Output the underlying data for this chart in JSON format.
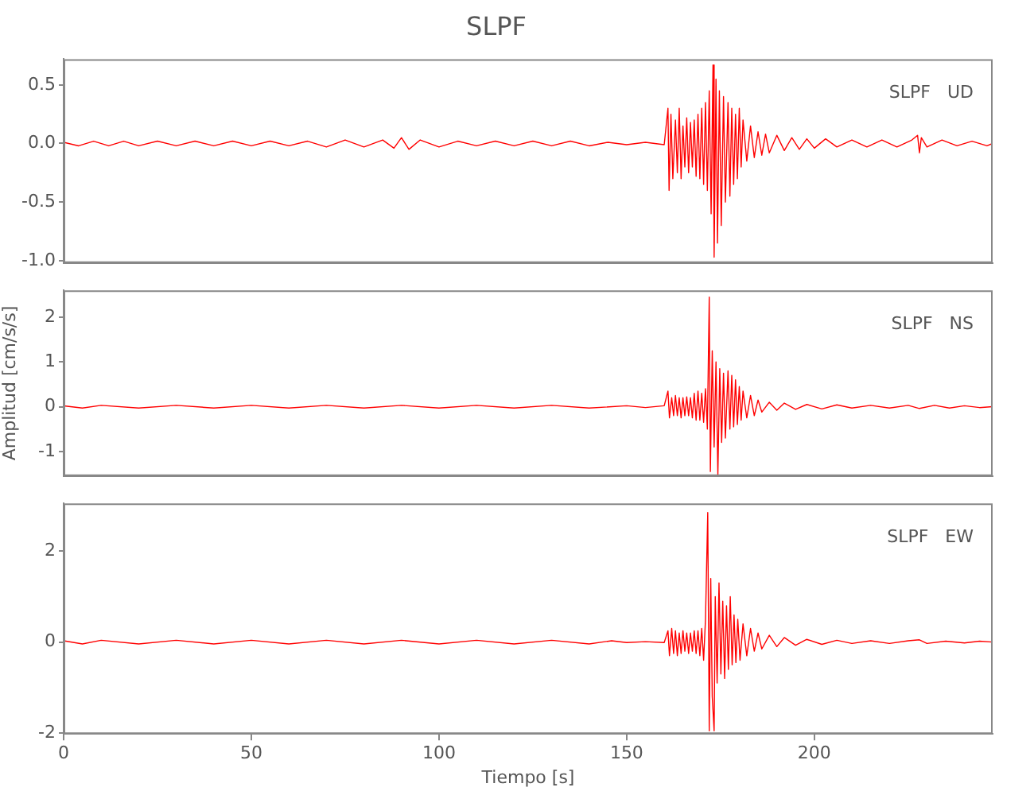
{
  "chart_data": [
    {
      "type": "line",
      "title": "SLPF",
      "annotations": [
        "SLPF   UD"
      ],
      "xlim": [
        0,
        247.5
      ],
      "xticks": [
        0,
        50,
        100,
        150,
        200
      ],
      "ylim": [
        -1.02,
        0.72
      ],
      "yticks": [
        0.5,
        {
          "value": 0,
          "label": "0.0"
        },
        -0.5,
        {
          "value": -1,
          "label": "-1.0"
        }
      ],
      "tick_labels": "y",
      "grid": false,
      "legend": false,
      "series": [
        {
          "color": "#ff0000",
          "x": [
            0,
            4,
            8,
            12,
            16,
            20,
            25,
            30,
            35,
            40,
            45,
            50,
            55,
            60,
            65,
            70,
            75,
            80,
            85,
            88,
            90,
            92,
            95,
            100,
            105,
            110,
            115,
            120,
            125,
            130,
            135,
            140,
            145,
            150,
            155,
            160,
            161,
            161.3,
            161.8,
            162.3,
            163,
            163.5,
            164,
            164.5,
            165,
            165.5,
            166,
            166.5,
            167,
            167.5,
            168,
            168.5,
            169,
            169.5,
            170,
            170.5,
            171,
            171.5,
            172,
            172.5,
            173,
            173.3,
            173.8,
            174.2,
            174.7,
            175.2,
            175.8,
            176.3,
            177,
            177.5,
            178,
            178.5,
            179,
            179.5,
            180,
            180.5,
            181,
            182,
            183,
            184,
            185,
            186,
            187,
            188,
            190,
            192,
            194,
            196,
            198,
            200,
            203,
            206,
            210,
            214,
            218,
            222,
            226,
            227.5,
            228,
            228.5,
            230,
            234,
            238,
            242,
            246,
            247.5
          ],
          "values": [
            0.01,
            -0.02,
            0.02,
            -0.02,
            0.02,
            -0.02,
            0.02,
            -0.02,
            0.02,
            -0.02,
            0.02,
            -0.02,
            0.02,
            -0.02,
            0.02,
            -0.03,
            0.03,
            -0.03,
            0.03,
            -0.04,
            0.05,
            -0.05,
            0.03,
            -0.03,
            0.02,
            -0.02,
            0.02,
            -0.02,
            0.02,
            -0.02,
            0.02,
            -0.02,
            0.01,
            -0.01,
            0.01,
            -0.01,
            0.3,
            -0.4,
            0.25,
            -0.3,
            0.2,
            -0.25,
            0.3,
            -0.3,
            0.15,
            -0.2,
            0.22,
            -0.25,
            0.18,
            -0.2,
            0.2,
            -0.28,
            0.25,
            -0.3,
            0.3,
            -0.35,
            0.35,
            -0.4,
            0.45,
            -0.6,
            0.67,
            -0.97,
            0.55,
            -0.85,
            0.45,
            -0.7,
            0.4,
            -0.5,
            0.35,
            -0.45,
            0.3,
            -0.35,
            0.25,
            -0.3,
            0.3,
            -0.2,
            0.2,
            -0.15,
            0.15,
            -0.12,
            0.1,
            -0.1,
            0.08,
            -0.08,
            0.07,
            -0.06,
            0.05,
            -0.05,
            0.04,
            -0.04,
            0.04,
            -0.03,
            0.03,
            -0.03,
            0.03,
            -0.03,
            0.03,
            0.07,
            -0.08,
            0.05,
            -0.03,
            0.03,
            -0.02,
            0.02,
            -0.02,
            0
          ]
        }
      ]
    },
    {
      "type": "line",
      "ylabel": "Amplitud [cm/s/s]",
      "annotations": [
        "SLPF   NS"
      ],
      "xlim": [
        0,
        247.5
      ],
      "xticks": [
        0,
        50,
        100,
        150,
        200
      ],
      "ylim": [
        -1.55,
        2.6
      ],
      "yticks": [
        2,
        1,
        0,
        -1
      ],
      "tick_labels": "y",
      "grid": false,
      "legend": false,
      "series": [
        {
          "color": "#ff0000",
          "x": [
            0,
            5,
            10,
            20,
            30,
            40,
            50,
            60,
            70,
            80,
            90,
            100,
            110,
            120,
            130,
            140,
            150,
            155,
            160,
            161,
            161.4,
            162,
            162.5,
            163,
            163.5,
            164,
            164.5,
            165,
            165.5,
            166,
            166.5,
            167,
            167.5,
            168,
            168.5,
            169,
            169.5,
            170,
            170.5,
            171,
            171.5,
            172,
            172.3,
            172.8,
            173.3,
            173.8,
            174.3,
            174.8,
            175.3,
            175.8,
            176.3,
            177,
            177.5,
            178,
            178.5,
            179,
            179.5,
            180,
            180.5,
            181,
            182,
            183,
            184,
            185,
            186,
            188,
            190,
            192,
            195,
            198,
            202,
            206,
            210,
            215,
            220,
            225,
            228,
            232,
            236,
            240,
            244,
            247.5
          ],
          "values": [
            0.02,
            -0.03,
            0.03,
            -0.03,
            0.03,
            -0.03,
            0.03,
            -0.03,
            0.03,
            -0.03,
            0.03,
            -0.03,
            0.03,
            -0.03,
            0.03,
            -0.03,
            0.02,
            -0.02,
            0.02,
            0.35,
            -0.25,
            0.2,
            -0.2,
            0.25,
            -0.2,
            0.2,
            -0.25,
            0.2,
            -0.2,
            0.22,
            -0.2,
            0.2,
            -0.25,
            0.3,
            -0.3,
            0.35,
            -0.3,
            0.3,
            -0.35,
            0.4,
            -0.5,
            2.45,
            -1.45,
            1.25,
            -0.9,
            1,
            -1.52,
            0.85,
            -0.8,
            0.75,
            -0.7,
            0.8,
            -0.5,
            0.7,
            -0.45,
            0.6,
            -0.4,
            0.45,
            -0.3,
            0.35,
            -0.25,
            0.25,
            -0.2,
            0.15,
            -0.12,
            0.1,
            -0.08,
            0.08,
            -0.06,
            0.05,
            -0.05,
            0.04,
            -0.03,
            0.03,
            -0.03,
            0.03,
            -0.04,
            0.03,
            -0.03,
            0.02,
            -0.02,
            0
          ]
        }
      ]
    },
    {
      "type": "line",
      "xlabel": "Tiempo [s]",
      "annotations": [
        "SLPF   EW"
      ],
      "xlim": [
        0,
        247.5
      ],
      "xticks": [
        0,
        50,
        100,
        150,
        200
      ],
      "ylim": [
        -2.02,
        3.05
      ],
      "yticks": [
        2,
        0,
        -2
      ],
      "grid": false,
      "legend": false,
      "series": [
        {
          "color": "#ff0000",
          "x": [
            0,
            5,
            10,
            20,
            30,
            40,
            50,
            60,
            70,
            80,
            90,
            100,
            110,
            120,
            130,
            140,
            146,
            150,
            155,
            160,
            161,
            161.4,
            162,
            162.5,
            163,
            163.5,
            164,
            164.5,
            165,
            165.5,
            166,
            166.5,
            167,
            167.5,
            168,
            168.5,
            169,
            169.5,
            170,
            170.5,
            171,
            171.6,
            172,
            172.4,
            172.8,
            173.3,
            173.6,
            174.1,
            174.6,
            175.1,
            175.6,
            176.1,
            176.6,
            177.1,
            177.6,
            178.1,
            178.6,
            179.1,
            179.6,
            180.2,
            181,
            182,
            183,
            184,
            185,
            186,
            188,
            190,
            192,
            195,
            198,
            202,
            206,
            210,
            215,
            220,
            225,
            228,
            230,
            235,
            240,
            244,
            247.5
          ],
          "values": [
            0.03,
            -0.04,
            0.04,
            -0.04,
            0.04,
            -0.04,
            0.04,
            -0.04,
            0.04,
            -0.04,
            0.04,
            -0.04,
            0.04,
            -0.04,
            0.04,
            -0.04,
            0.03,
            -0.01,
            0.01,
            -0.01,
            0.25,
            -0.3,
            0.3,
            -0.25,
            0.25,
            -0.3,
            0.2,
            -0.25,
            0.25,
            -0.2,
            0.2,
            -0.25,
            0.2,
            -0.2,
            0.25,
            -0.25,
            0.25,
            -0.3,
            0.3,
            -0.4,
            0.5,
            2.85,
            -1.95,
            1.4,
            -1.2,
            -1.95,
            1,
            -0.9,
            1.3,
            -0.7,
            0.9,
            -0.8,
            0.8,
            -0.6,
            1,
            -0.5,
            0.6,
            -0.45,
            0.5,
            -0.4,
            0.4,
            -0.3,
            0.3,
            -0.2,
            0.2,
            -0.15,
            0.15,
            -0.1,
            0.1,
            -0.07,
            0.06,
            -0.05,
            0.04,
            -0.03,
            0.03,
            -0.03,
            0.03,
            0.05,
            -0.03,
            0.02,
            -0.02,
            0.02,
            0
          ]
        }
      ]
    }
  ]
}
